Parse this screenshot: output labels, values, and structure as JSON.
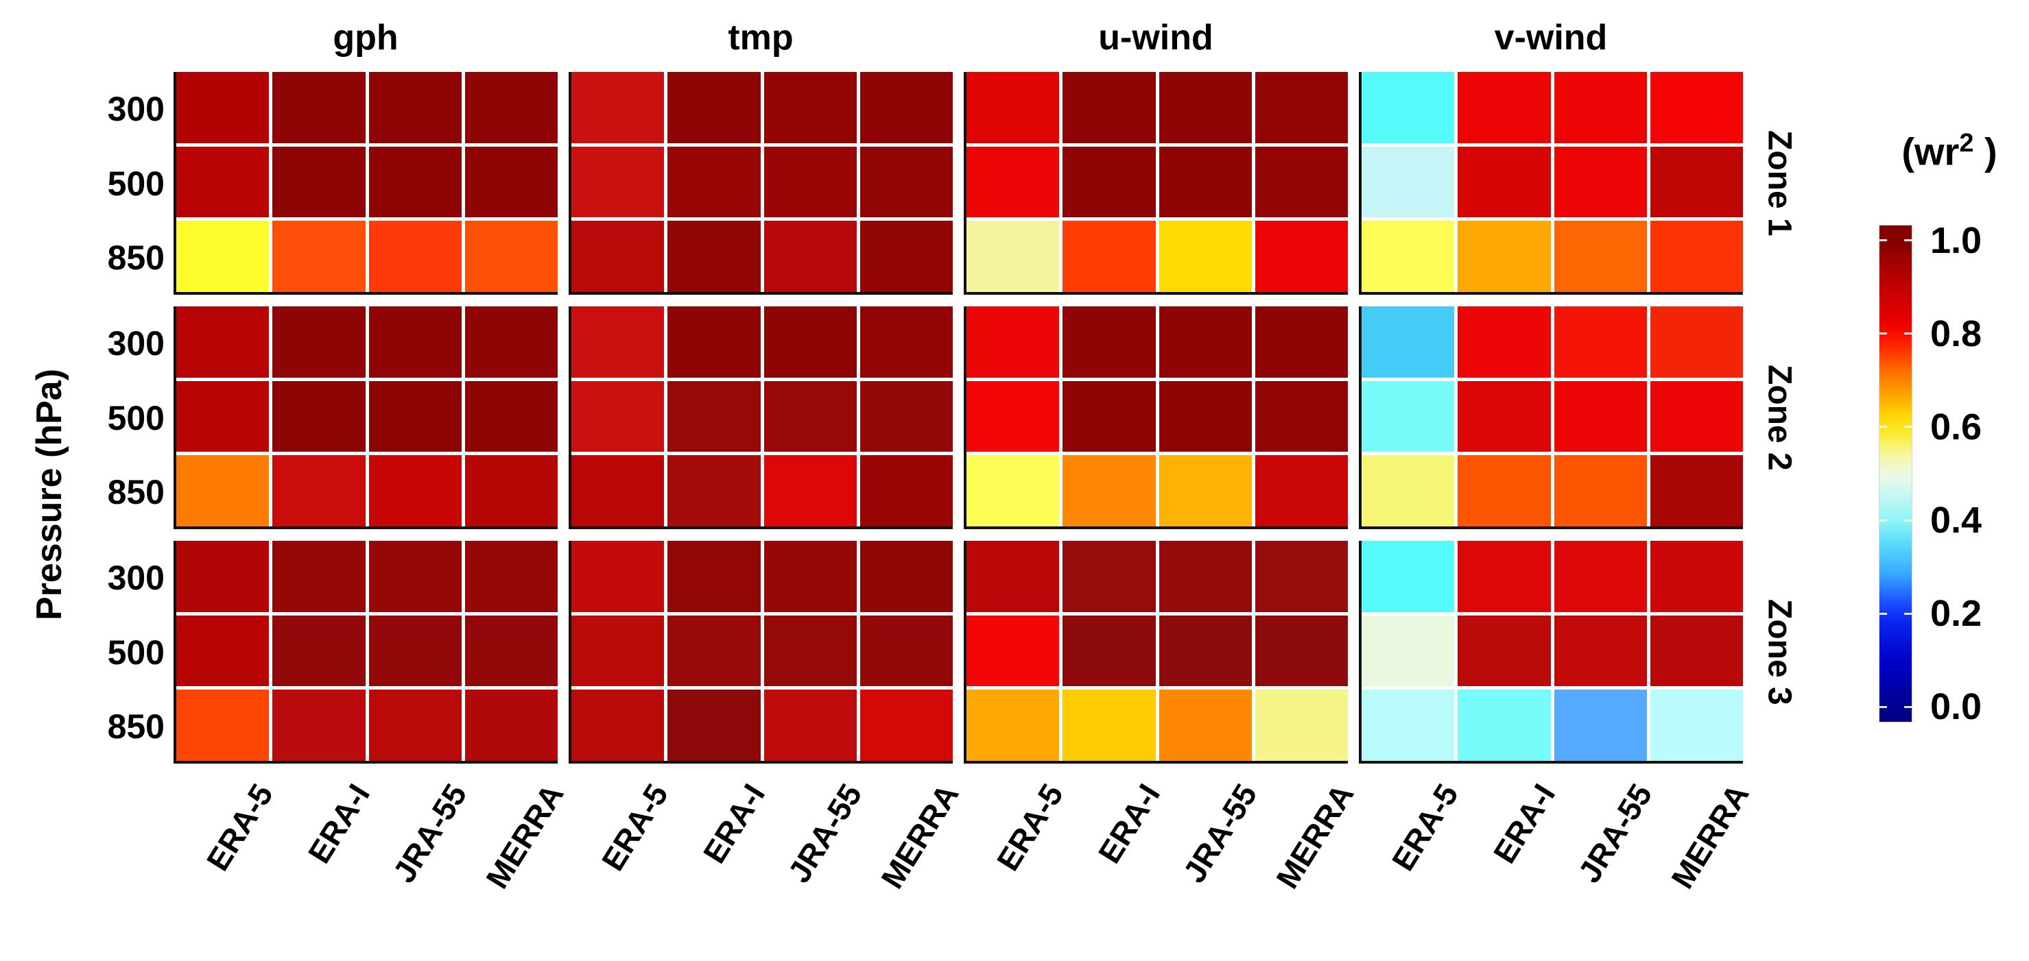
{
  "figure": {
    "ylabel": "Pressure (hPa)",
    "colorbar": {
      "title_prefix": "(wr",
      "title_sup": "2",
      "title_suffix": " )",
      "ticks": [
        "1.0",
        "0.8",
        "0.6",
        "0.4",
        "0.2",
        "0.0"
      ],
      "gradient_stops": [
        {
          "p": 0,
          "c": "#800000"
        },
        {
          "p": 4,
          "c": "#8b0000"
        },
        {
          "p": 12,
          "c": "#c00000"
        },
        {
          "p": 20,
          "c": "#ee0000"
        },
        {
          "p": 24,
          "c": "#ff2200"
        },
        {
          "p": 29,
          "c": "#ff6a00"
        },
        {
          "p": 34,
          "c": "#ffa100"
        },
        {
          "p": 38,
          "c": "#ffd300"
        },
        {
          "p": 42,
          "c": "#fbec30"
        },
        {
          "p": 46,
          "c": "#f8f69c"
        },
        {
          "p": 50,
          "c": "#eef8e4"
        },
        {
          "p": 54,
          "c": "#c9f7f4"
        },
        {
          "p": 59,
          "c": "#93f6f6"
        },
        {
          "p": 64,
          "c": "#5bdcfb"
        },
        {
          "p": 70,
          "c": "#3aaaff"
        },
        {
          "p": 76,
          "c": "#1b50ff"
        },
        {
          "p": 80,
          "c": "#0a24f0"
        },
        {
          "p": 88,
          "c": "#0000c8"
        },
        {
          "p": 100,
          "c": "#000080"
        }
      ]
    }
  },
  "chart_data": {
    "type": "heatmap",
    "value_label": "(wr2 )",
    "colorbar_range": [
      0.0,
      1.0
    ],
    "colorbar_ticks": [
      1.0,
      0.8,
      0.6,
      0.4,
      0.2,
      0.0
    ],
    "variables": [
      "gph",
      "tmp",
      "u-wind",
      "v-wind"
    ],
    "zones": [
      "Zone 1",
      "Zone 2",
      "Zone 3"
    ],
    "categories": [
      "ERA-5",
      "ERA-I",
      "JRA-55",
      "MERRA"
    ],
    "pressure_levels": [
      "300",
      "500",
      "850"
    ],
    "ylabel": "Pressure (hPa)",
    "legend_position": "right",
    "panels": [
      {
        "variable": "gph",
        "zones": [
          {
            "zone": "Zone 1",
            "values": [
              [
                0.92,
                0.97,
                0.97,
                0.97
              ],
              [
                0.91,
                0.97,
                0.97,
                0.97
              ],
              [
                0.61,
                0.79,
                0.8,
                0.78
              ]
            ],
            "colors": [
              [
                "#b20303",
                "#8f0404",
                "#8f0404",
                "#8f0404"
              ],
              [
                "#ba0404",
                "#8f0404",
                "#8f0404",
                "#8f0404"
              ],
              [
                "#fdfd2e",
                "#ff4e08",
                "#fe3a0a",
                "#fe5004"
              ]
            ]
          },
          {
            "zone": "Zone 2",
            "values": [
              [
                0.91,
                0.97,
                0.97,
                0.97
              ],
              [
                0.91,
                0.97,
                0.97,
                0.97
              ],
              [
                0.73,
                0.88,
                0.88,
                0.91
              ]
            ],
            "colors": [
              [
                "#b70404",
                "#8f0404",
                "#8f0404",
                "#8f0404"
              ],
              [
                "#ba0404",
                "#8d0404",
                "#8d0404",
                "#8f0404"
              ],
              [
                "#fe7c01",
                "#cb0c0c",
                "#c70606",
                "#b70606"
              ]
            ]
          },
          {
            "zone": "Zone 3",
            "values": [
              [
                0.92,
                0.96,
                0.96,
                0.96
              ],
              [
                0.91,
                0.96,
                0.96,
                0.96
              ],
              [
                0.78,
                0.9,
                0.9,
                0.92
              ]
            ],
            "colors": [
              [
                "#b20505",
                "#960808",
                "#960808",
                "#960808"
              ],
              [
                "#b70505",
                "#930808",
                "#930808",
                "#930808"
              ],
              [
                "#fd4503",
                "#ba0c0c",
                "#ba0909",
                "#b10909"
              ]
            ]
          }
        ]
      },
      {
        "variable": "tmp",
        "zones": [
          {
            "zone": "Zone 1",
            "values": [
              [
                0.88,
                0.97,
                0.96,
                0.97
              ],
              [
                0.88,
                0.96,
                0.96,
                0.96
              ],
              [
                0.9,
                0.96,
                0.91,
                0.96
              ]
            ],
            "colors": [
              [
                "#cb1010",
                "#8f0404",
                "#930404",
                "#8f0404"
              ],
              [
                "#cb1010",
                "#980606",
                "#980606",
                "#930606"
              ],
              [
                "#ba0909",
                "#930606",
                "#b70909",
                "#930606"
              ]
            ]
          },
          {
            "zone": "Zone 2",
            "values": [
              [
                0.88,
                0.97,
                0.97,
                0.96
              ],
              [
                0.88,
                0.96,
                0.96,
                0.96
              ],
              [
                0.9,
                0.94,
                0.86,
                0.96
              ]
            ],
            "colors": [
              [
                "#cb1010",
                "#8f0404",
                "#8f0404",
                "#930404"
              ],
              [
                "#cb1010",
                "#980808",
                "#980808",
                "#930808"
              ],
              [
                "#ba0606",
                "#a40c0c",
                "#dc0707",
                "#980606"
              ]
            ]
          },
          {
            "zone": "Zone 3",
            "values": [
              [
                0.88,
                0.96,
                0.96,
                0.97
              ],
              [
                0.9,
                0.96,
                0.96,
                0.96
              ],
              [
                0.9,
                0.97,
                0.89,
                0.86
              ]
            ],
            "colors": [
              [
                "#c30b0b",
                "#930707",
                "#960707",
                "#8f0707"
              ],
              [
                "#ba0b0b",
                "#980909",
                "#960909",
                "#930909"
              ],
              [
                "#ba0b0b",
                "#8e0909",
                "#bf0b0b",
                "#d50808"
              ]
            ]
          }
        ]
      },
      {
        "variable": "u-wind",
        "zones": [
          {
            "zone": "Zone 1",
            "values": [
              [
                0.86,
                0.97,
                0.97,
                0.96
              ],
              [
                0.85,
                0.97,
                0.97,
                0.96
              ],
              [
                0.55,
                0.79,
                0.64,
                0.85
              ]
            ],
            "colors": [
              [
                "#df0303",
                "#8f0404",
                "#8f0404",
                "#930404"
              ],
              [
                "#ed0404",
                "#8f0404",
                "#8f0404",
                "#930404"
              ],
              [
                "#f4f49f",
                "#fe3c04",
                "#fedc03",
                "#ed0404"
              ]
            ]
          },
          {
            "zone": "Zone 2",
            "values": [
              [
                0.85,
                0.97,
                0.97,
                0.97
              ],
              [
                0.84,
                0.97,
                0.97,
                0.96
              ],
              [
                0.6,
                0.72,
                0.68,
                0.88
              ]
            ],
            "colors": [
              [
                "#ed0606",
                "#8f0404",
                "#8f0404",
                "#8f0404"
              ],
              [
                "#f40606",
                "#8f0404",
                "#8f0404",
                "#930404"
              ],
              [
                "#fdfd55",
                "#fe8703",
                "#feb203",
                "#cb0606"
              ]
            ]
          },
          {
            "zone": "Zone 3",
            "values": [
              [
                0.9,
                0.96,
                0.96,
                0.96
              ],
              [
                0.84,
                0.97,
                0.97,
                0.97
              ],
              [
                0.7,
                0.66,
                0.72,
                0.56
              ]
            ],
            "colors": [
              [
                "#ba0606",
                "#960b0b",
                "#930b0b",
                "#960b0b"
              ],
              [
                "#f40606",
                "#8e0b0b",
                "#8e0b0b",
                "#8e0b0b"
              ],
              [
                "#fea903",
                "#fecb03",
                "#fe8703",
                "#f4f488"
              ]
            ]
          }
        ]
      },
      {
        "variable": "v-wind",
        "zones": [
          {
            "zone": "Zone 1",
            "values": [
              [
                0.4,
                0.85,
                0.85,
                0.85
              ],
              [
                0.46,
                0.87,
                0.85,
                0.89
              ],
              [
                0.6,
                0.7,
                0.75,
                0.8
              ]
            ],
            "colors": [
              [
                "#55fbfb",
                "#ed0404",
                "#ed0404",
                "#f40404"
              ],
              [
                "#c7f6f9",
                "#d70404",
                "#ed0404",
                "#bf0404"
              ],
              [
                "#fdfd55",
                "#fea903",
                "#fe6603",
                "#fe3303"
              ]
            ]
          },
          {
            "zone": "Zone 2",
            "values": [
              [
                0.34,
                0.85,
                0.84,
                0.83
              ],
              [
                0.42,
                0.86,
                0.85,
                0.85
              ],
              [
                0.58,
                0.77,
                0.77,
                0.93
              ]
            ],
            "colors": [
              [
                "#44ccf6",
                "#ed0606",
                "#f41506",
                "#f42506"
              ],
              [
                "#77fbfb",
                "#dc0606",
                "#ed0606",
                "#ed0606"
              ],
              [
                "#f6f677",
                "#fe5503",
                "#fe5503",
                "#a90606"
              ]
            ]
          },
          {
            "zone": "Zone 3",
            "values": [
              [
                0.4,
                0.86,
                0.86,
                0.88
              ],
              [
                0.5,
                0.9,
                0.89,
                0.9
              ],
              [
                0.45,
                0.42,
                0.31,
                0.44
              ]
            ],
            "colors": [
              [
                "#55fbfb",
                "#dc0707",
                "#dc0707",
                "#cb0707"
              ],
              [
                "#eaf8e0",
                "#ba0a0a",
                "#c30909",
                "#b70909"
              ],
              [
                "#b8fbfb",
                "#77fbfb",
                "#55aaff",
                "#bafcfc"
              ]
            ]
          }
        ]
      }
    ]
  }
}
